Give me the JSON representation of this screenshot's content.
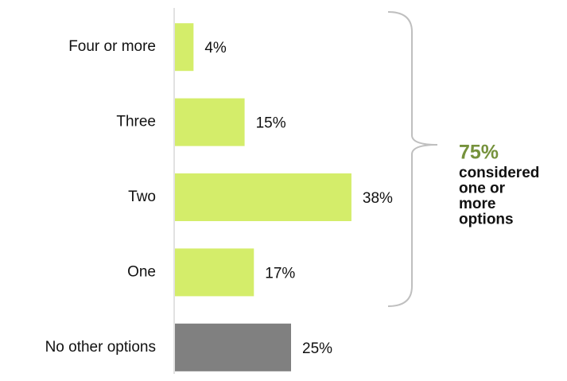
{
  "chart_data": {
    "type": "barh",
    "categories": [
      "Four or more",
      "Three",
      "Two",
      "One",
      "No other options"
    ],
    "values": [
      4,
      15,
      38,
      17,
      25
    ],
    "value_labels": [
      "4%",
      "15%",
      "38%",
      "17%",
      "25%"
    ],
    "colors": [
      "#d4ed6a",
      "#d4ed6a",
      "#d4ed6a",
      "#d4ed6a",
      "#808080"
    ],
    "xlim": [
      0,
      50
    ],
    "annotation": {
      "value": "75%",
      "color": "#76923c",
      "lines": [
        "considered",
        "one or",
        "more",
        "options"
      ]
    }
  }
}
